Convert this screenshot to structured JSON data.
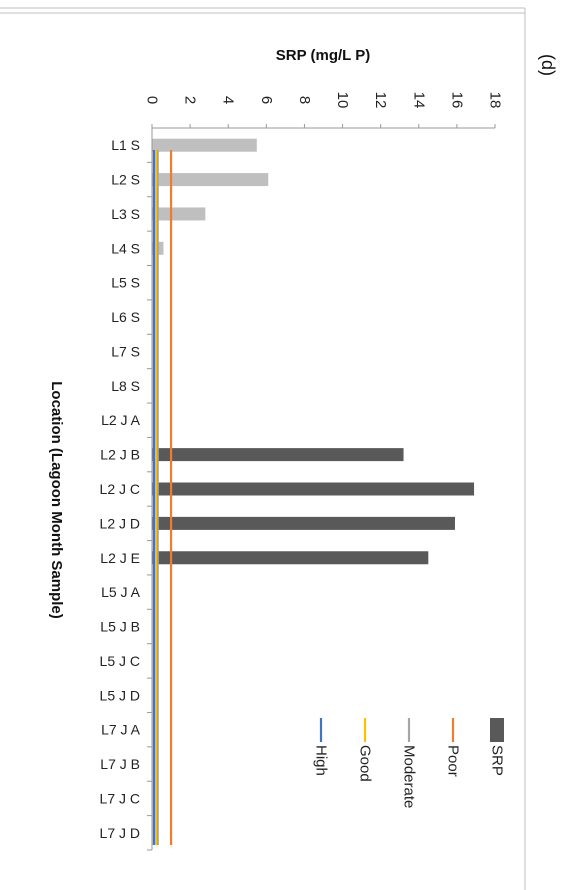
{
  "panel_label": "(d)",
  "chart_data": {
    "type": "bar",
    "orientation": "horizontal",
    "xlabel": "SRP (mg/L P)",
    "ylabel": "Location (Lagoon Month Sample)",
    "xlim": [
      0,
      18
    ],
    "x_ticks": [
      0,
      2,
      4,
      6,
      8,
      10,
      12,
      14,
      16,
      18
    ],
    "grid": false,
    "legend_position": "right",
    "categories": [
      "L1 S",
      "L2 S",
      "L3 S",
      "L4 S",
      "L5 S",
      "L6 S",
      "L7 S",
      "L8 S",
      "L2 J A",
      "L2 J B",
      "L2 J C",
      "L2 J D",
      "L2 J E",
      "L5 J A",
      "L5 J B",
      "L5 J C",
      "L5 J D",
      "L7 J A",
      "L7 J B",
      "L7 J C",
      "L7 J D"
    ],
    "bars": {
      "name": "SRP",
      "values": [
        5.5,
        6.1,
        2.8,
        0.6,
        0,
        0,
        0,
        0,
        0,
        13.2,
        16.9,
        15.9,
        14.5,
        0,
        0,
        0,
        0,
        0,
        0,
        0,
        0
      ],
      "colors": [
        "#bfbfbf",
        "#bfbfbf",
        "#bfbfbf",
        "#bfbfbf",
        "#bfbfbf",
        "#bfbfbf",
        "#bfbfbf",
        "#bfbfbf",
        "#595959",
        "#595959",
        "#595959",
        "#595959",
        "#595959",
        "#595959",
        "#595959",
        "#595959",
        "#595959",
        "#595959",
        "#595959",
        "#595959",
        "#595959"
      ],
      "legend_color": "#595959"
    },
    "thresholds": [
      {
        "name": "Poor",
        "value": 1.0,
        "color": "#ed7d31"
      },
      {
        "name": "Moderate",
        "value": 0.3,
        "color": "#a5a5a5"
      },
      {
        "name": "Good",
        "value": 0.2,
        "color": "#ffc000"
      },
      {
        "name": "High",
        "value": 0.1,
        "color": "#4472c4"
      }
    ]
  }
}
